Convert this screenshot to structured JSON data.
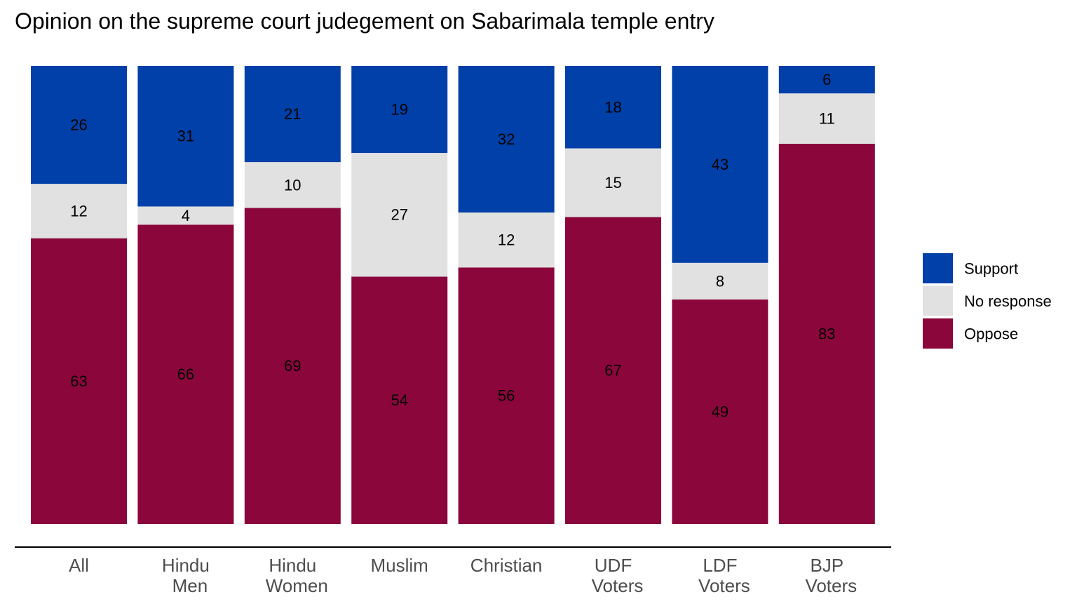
{
  "chart_data": {
    "type": "bar",
    "stacked": true,
    "title": "Opinion on the supreme court judegement on Sabarimala temple entry",
    "xlabel": "",
    "ylabel": "",
    "categories": [
      [
        "All"
      ],
      [
        "Hindu",
        "Men"
      ],
      [
        "Hindu",
        "Women"
      ],
      [
        "Muslim"
      ],
      [
        "Christian"
      ],
      [
        "UDF",
        "Voters"
      ],
      [
        "LDF",
        "Voters"
      ],
      [
        "BJP",
        "Voters"
      ]
    ],
    "series": [
      {
        "name": "Oppose",
        "color": "#8b063b",
        "values": [
          63,
          66,
          69,
          54,
          56,
          67,
          49,
          83
        ]
      },
      {
        "name": "No response",
        "color": "#e1e1e1",
        "values": [
          12,
          4,
          10,
          27,
          12,
          15,
          8,
          11
        ]
      },
      {
        "name": "Support",
        "color": "#0040a8",
        "values": [
          26,
          31,
          21,
          19,
          32,
          18,
          43,
          6
        ]
      }
    ],
    "legend": {
      "position": "right",
      "order": [
        "Support",
        "No response",
        "Oppose"
      ]
    },
    "grid": false
  }
}
